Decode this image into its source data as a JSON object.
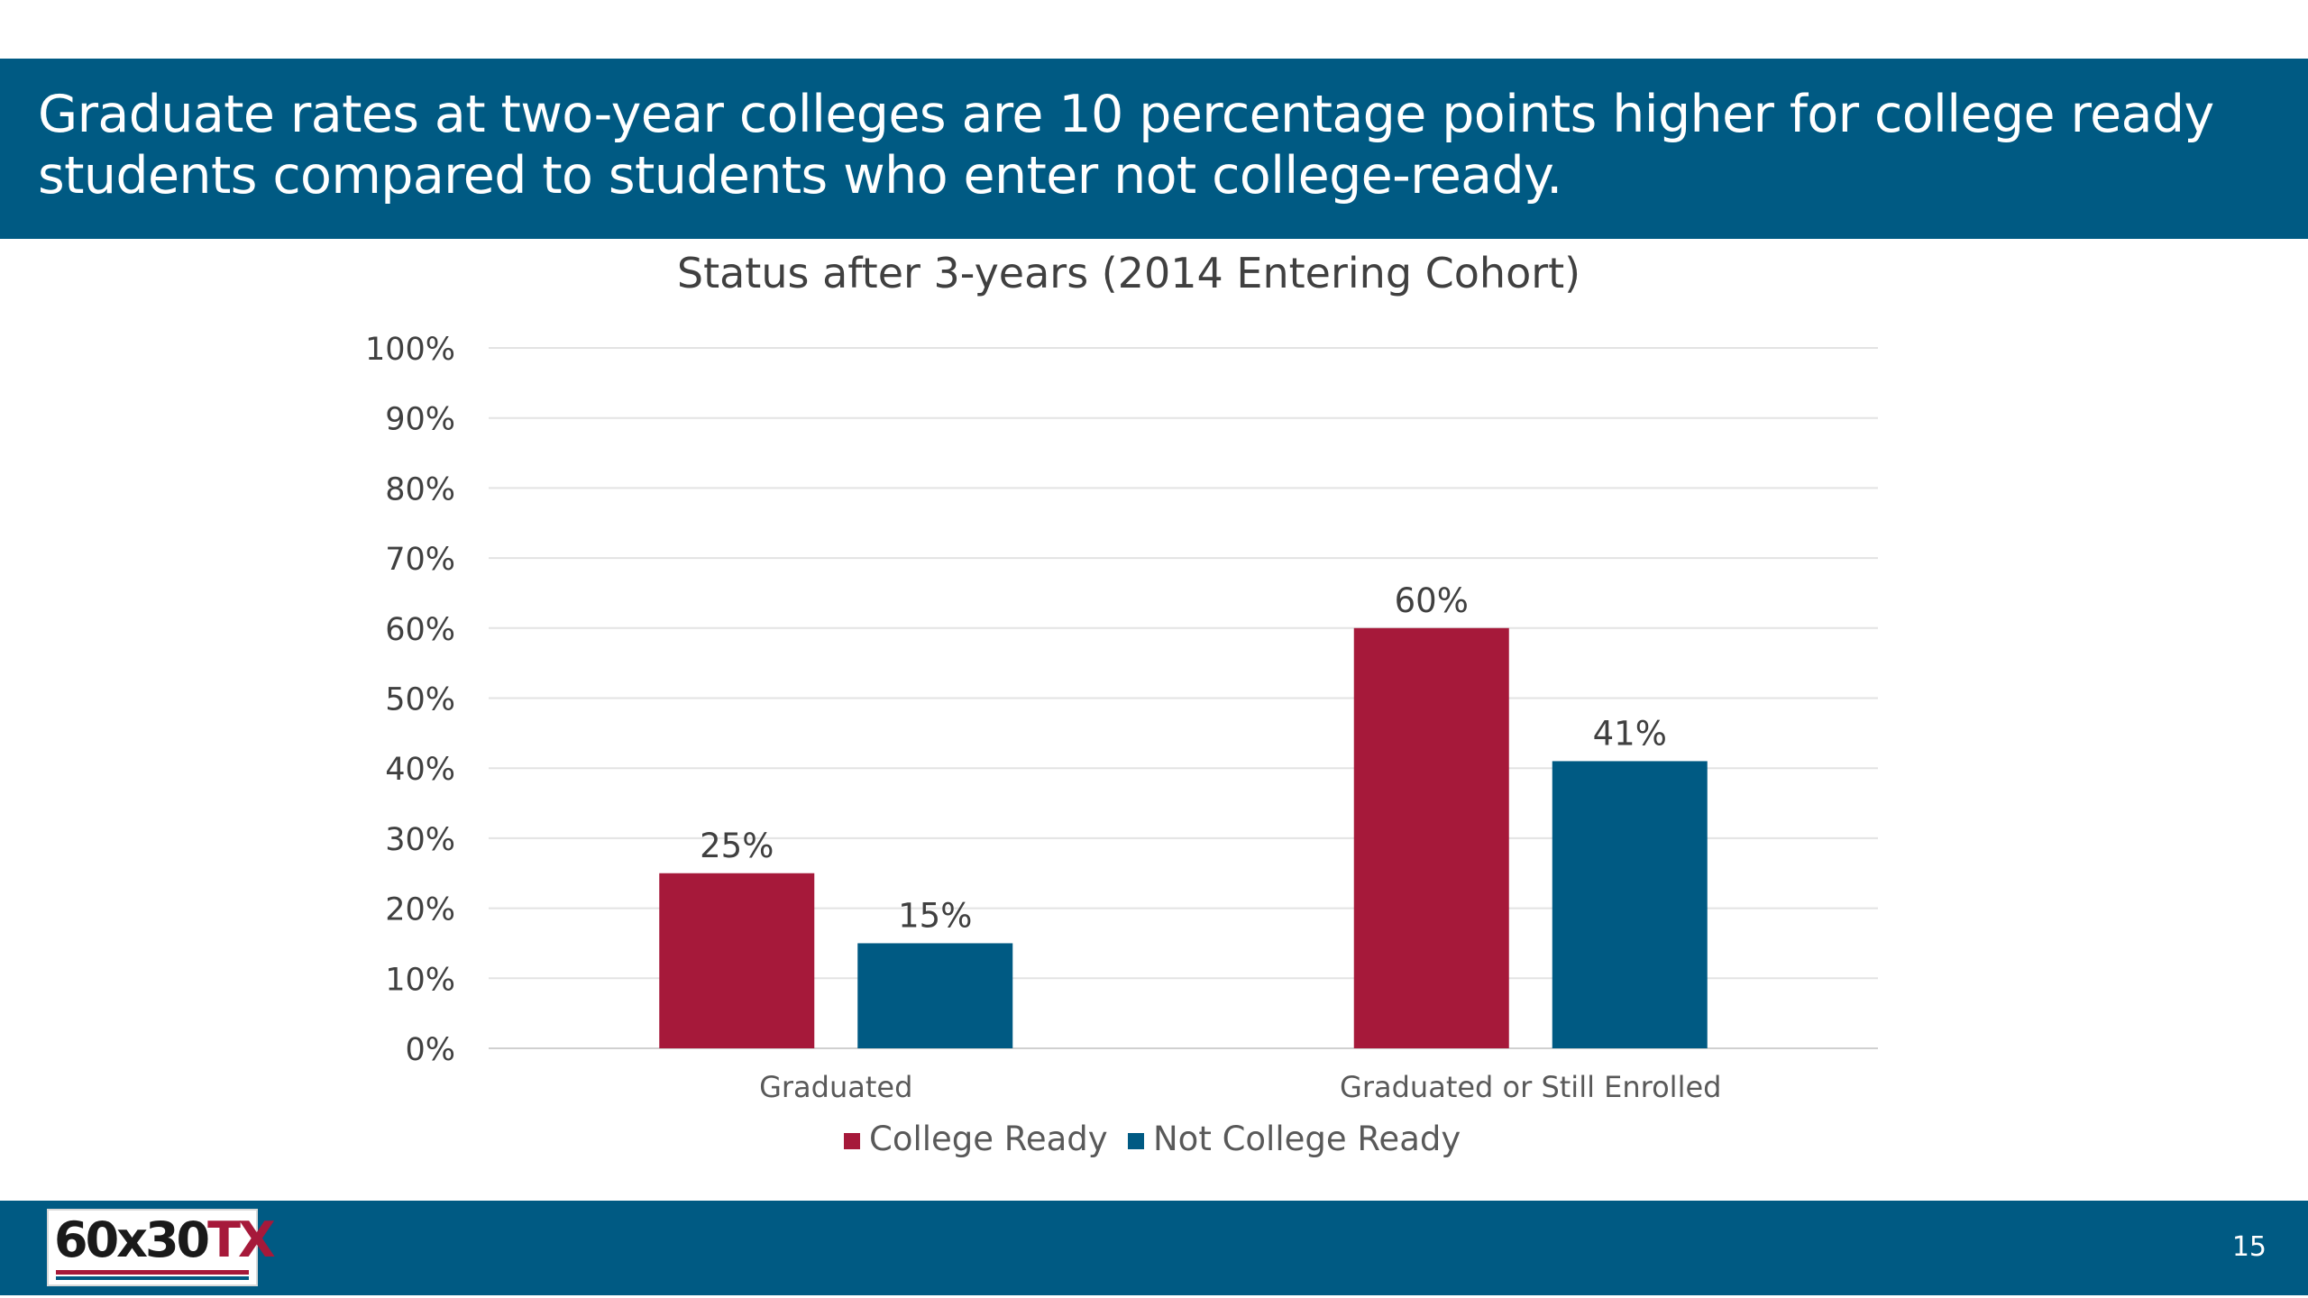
{
  "slide": {
    "headline": "Graduate rates at two-year colleges are 10 percentage points higher for college ready students compared to students who enter not college-ready.",
    "page_number": "15",
    "logo": {
      "number_text": "60x30",
      "state_text": "TX"
    },
    "colors": {
      "band": "#005A83",
      "college_ready": "#A6193A",
      "not_college_ready": "#005A83"
    }
  },
  "chart_data": {
    "type": "bar",
    "title": "Status after 3-years (2014 Entering Cohort)",
    "xlabel": "",
    "ylabel": "",
    "categories": [
      "Graduated",
      "Graduated or Still Enrolled"
    ],
    "series": [
      {
        "name": "College Ready",
        "values": [
          25,
          60
        ],
        "labels": [
          "25%",
          "60%"
        ],
        "color": "#A6193A"
      },
      {
        "name": "Not College Ready",
        "values": [
          15,
          41
        ],
        "labels": [
          "15%",
          "41%"
        ],
        "color": "#005A83"
      }
    ],
    "ylim": [
      0,
      100
    ],
    "yticks": [
      "0%",
      "10%",
      "20%",
      "30%",
      "40%",
      "50%",
      "60%",
      "70%",
      "80%",
      "90%",
      "100%"
    ],
    "grid": true,
    "legend_position": "bottom"
  }
}
